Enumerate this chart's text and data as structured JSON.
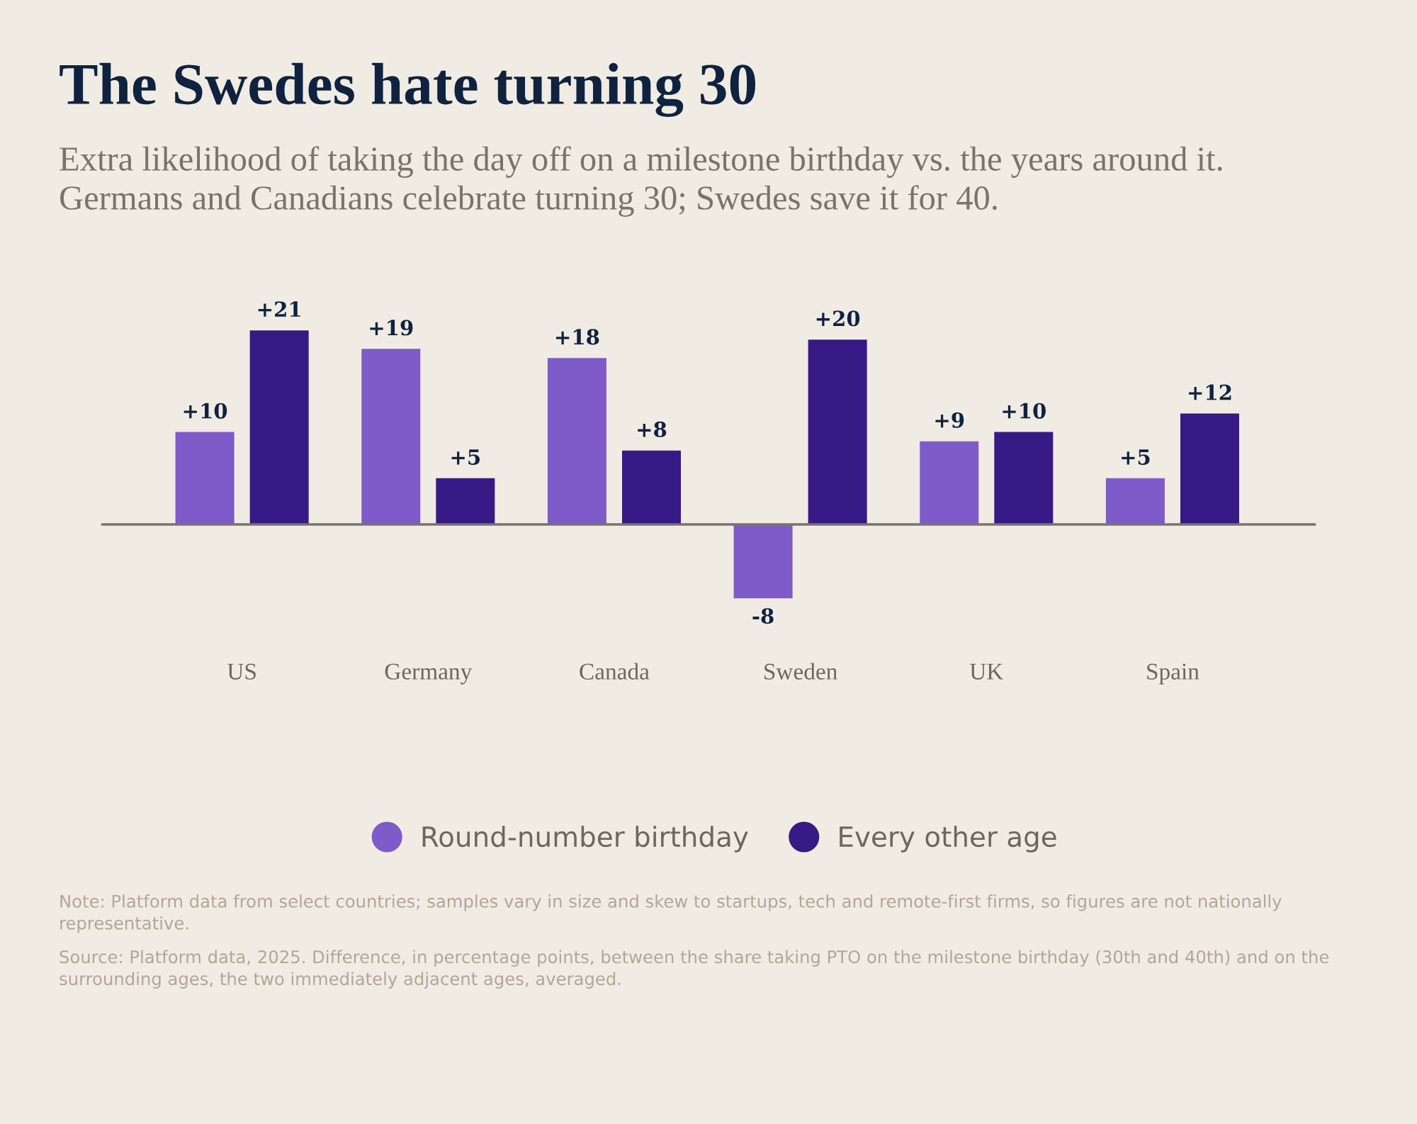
{
  "chart_data": {
    "type": "bar",
    "title": "The Swedes hate turning 30",
    "subtitle": "Extra likelihood of taking the day off on a milestone birthday vs. the years around it.\nGermans and Canadians celebrate turning 30; Swedes save it for 40.",
    "categories": [
      "US",
      "Germany",
      "Canada",
      "Sweden",
      "UK",
      "Spain"
    ],
    "series": [
      {
        "name": "Round-number birthday",
        "color": "#7e5bc8",
        "values": [
          10,
          19,
          18,
          -8,
          9,
          5
        ],
        "value_labels": [
          "+10",
          "+19",
          "+18",
          "-8",
          "+9",
          "+5"
        ]
      },
      {
        "name": "Every other age",
        "color": "#371a85",
        "values": [
          21,
          5,
          8,
          20,
          10,
          12
        ],
        "value_labels": [
          "+21",
          "+5",
          "+8",
          "+20",
          "+10",
          "+12"
        ]
      }
    ],
    "legend": "bottom",
    "grid": false,
    "annotations": [
      "Note: Platform data from select countries; samples vary in size and skew to startups, tech and remote-first firms, so figures are not nationally representative.",
      "Source: Platform data, 2025. Difference, in percentage points, between the share taking PTO on the milestone birthday (30th and 40th) and on the surrounding ages, the two immediately adjacent ages, averaged."
    ]
  }
}
